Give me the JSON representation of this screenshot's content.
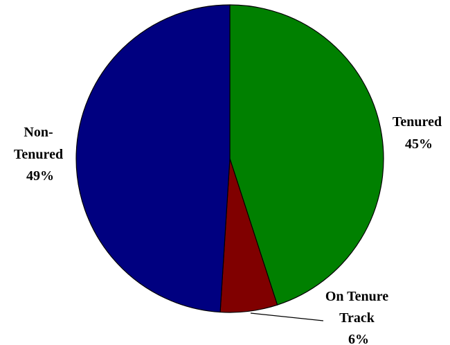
{
  "chart_data": {
    "type": "pie",
    "title": "",
    "start_angle_deg": 0,
    "direction": "clockwise",
    "legend": "none",
    "slices": [
      {
        "label_lines": [
          "Tenured",
          "45%"
        ],
        "value": 45,
        "color": "#008000"
      },
      {
        "label_lines": [
          "On Tenure",
          "Track",
          "6%"
        ],
        "value": 6,
        "color": "#800000"
      },
      {
        "label_lines": [
          "Non-",
          "Tenured",
          "49%"
        ],
        "value": 49,
        "color": "#000080"
      }
    ]
  }
}
